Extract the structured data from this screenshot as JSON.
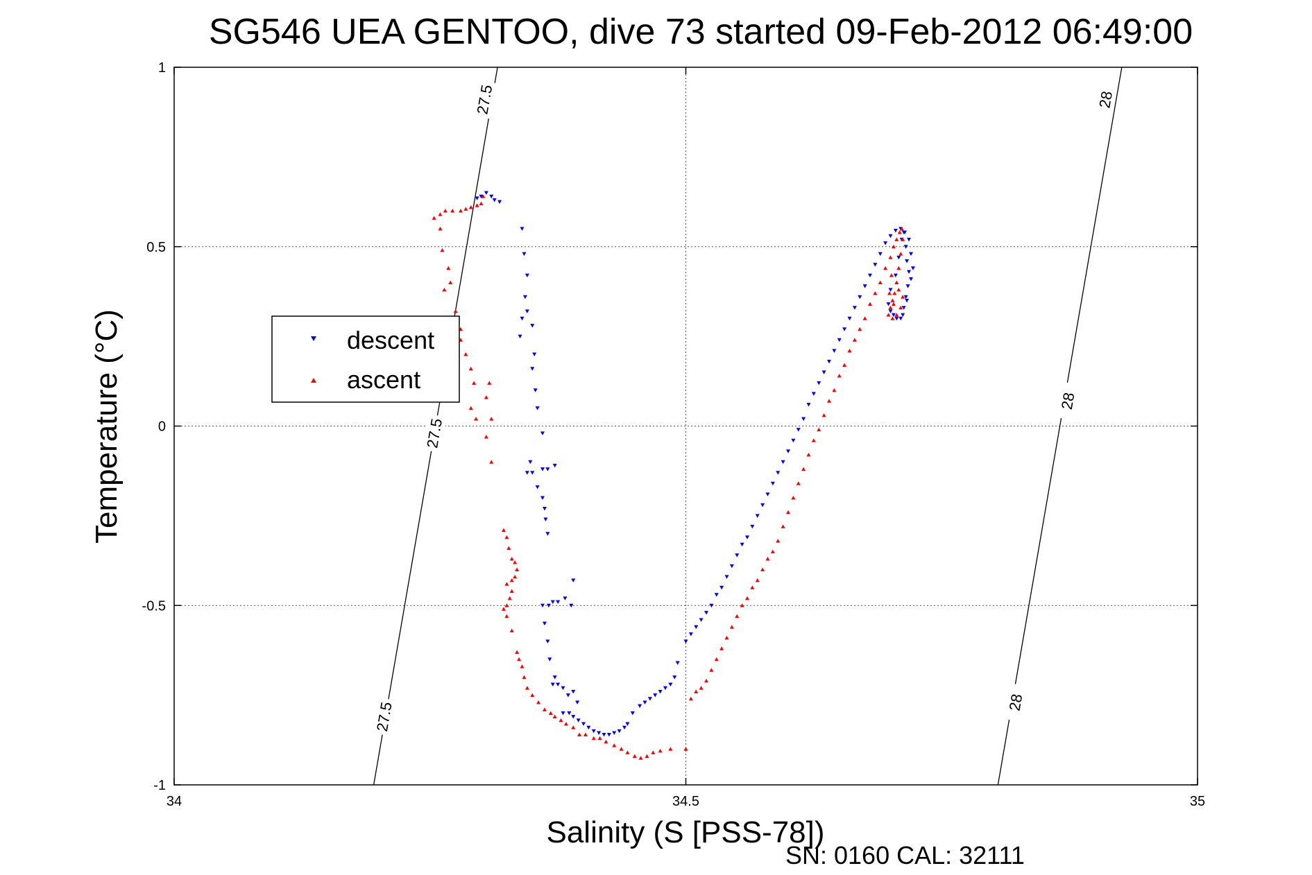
{
  "chart_data": {
    "type": "scatter",
    "title": "SG546 UEA GENTOO, dive 73 started 09-Feb-2012 06:49:00",
    "xlabel": "Salinity (S [PSS-78])",
    "ylabel": "Temperature (°C)",
    "xlim": [
      34,
      35
    ],
    "ylim": [
      -1,
      1
    ],
    "xticks": [
      "34",
      "34.5",
      "35"
    ],
    "yticks": [
      "-1",
      "-0.5",
      "0",
      "0.5",
      "1"
    ],
    "grid": true,
    "legend_position": "left",
    "footer": "SN: 0160  CAL: 32111",
    "isopycnals": [
      {
        "label": "27.5",
        "segments": [
          [
            34.195,
            -1.0
          ],
          [
            34.316,
            1.0
          ]
        ]
      },
      {
        "label": "28",
        "segments": [
          [
            34.805,
            -1.0
          ],
          [
            34.926,
            1.0
          ]
        ]
      }
    ],
    "isopycnal_labels": [
      {
        "text": "27.5",
        "x": 34.303,
        "y": 0.91
      },
      {
        "text": "27.5",
        "x": 34.254,
        "y": -0.02
      },
      {
        "text": "27.5",
        "x": 34.205,
        "y": -0.81
      },
      {
        "text": "28",
        "x": 34.91,
        "y": 0.91
      },
      {
        "text": "28",
        "x": 34.873,
        "y": 0.07
      },
      {
        "text": "28",
        "x": 34.822,
        "y": -0.77
      }
    ],
    "series": [
      {
        "name": "descent",
        "color": "#0000ff",
        "marker": "triangle-down",
        "points": [
          [
            34.305,
            0.65
          ],
          [
            34.31,
            0.64
          ],
          [
            34.313,
            0.63
          ],
          [
            34.318,
            0.625
          ],
          [
            34.3,
            0.64
          ],
          [
            34.296,
            0.635
          ],
          [
            34.34,
            0.55
          ],
          [
            34.342,
            0.48
          ],
          [
            34.345,
            0.42
          ],
          [
            34.343,
            0.36
          ],
          [
            34.34,
            0.3
          ],
          [
            34.338,
            0.25
          ],
          [
            34.345,
            0.32
          ],
          [
            34.35,
            0.28
          ],
          [
            34.352,
            0.2
          ],
          [
            34.35,
            0.16
          ],
          [
            34.353,
            0.1
          ],
          [
            34.355,
            0.05
          ],
          [
            34.36,
            -0.02
          ],
          [
            34.348,
            -0.1
          ],
          [
            34.345,
            -0.13
          ],
          [
            34.35,
            -0.13
          ],
          [
            34.36,
            -0.12
          ],
          [
            34.365,
            -0.12
          ],
          [
            34.372,
            -0.11
          ],
          [
            34.355,
            -0.17
          ],
          [
            34.36,
            -0.2
          ],
          [
            34.362,
            -0.23
          ],
          [
            34.363,
            -0.26
          ],
          [
            34.365,
            -0.3
          ],
          [
            34.36,
            -0.5
          ],
          [
            34.366,
            -0.5
          ],
          [
            34.37,
            -0.49
          ],
          [
            34.375,
            -0.49
          ],
          [
            34.382,
            -0.48
          ],
          [
            34.39,
            -0.43
          ],
          [
            34.388,
            -0.5
          ],
          [
            34.362,
            -0.55
          ],
          [
            34.365,
            -0.6
          ],
          [
            34.367,
            -0.65
          ],
          [
            34.372,
            -0.7
          ],
          [
            34.37,
            -0.72
          ],
          [
            34.375,
            -0.72
          ],
          [
            34.38,
            -0.73
          ],
          [
            34.385,
            -0.75
          ],
          [
            34.39,
            -0.74
          ],
          [
            34.394,
            -0.77
          ],
          [
            34.38,
            -0.8
          ],
          [
            34.386,
            -0.8
          ],
          [
            34.39,
            -0.81
          ],
          [
            34.395,
            -0.82
          ],
          [
            34.4,
            -0.83
          ],
          [
            34.405,
            -0.84
          ],
          [
            34.41,
            -0.85
          ],
          [
            34.415,
            -0.855
          ],
          [
            34.42,
            -0.86
          ],
          [
            34.425,
            -0.86
          ],
          [
            34.43,
            -0.855
          ],
          [
            34.435,
            -0.85
          ],
          [
            34.44,
            -0.84
          ],
          [
            34.443,
            -0.83
          ],
          [
            34.448,
            -0.8
          ],
          [
            34.455,
            -0.78
          ],
          [
            34.46,
            -0.77
          ],
          [
            34.465,
            -0.76
          ],
          [
            34.47,
            -0.75
          ],
          [
            34.475,
            -0.74
          ],
          [
            34.48,
            -0.73
          ],
          [
            34.485,
            -0.72
          ],
          [
            34.489,
            -0.7
          ],
          [
            34.492,
            -0.66
          ],
          [
            34.5,
            -0.6
          ],
          [
            34.505,
            -0.58
          ],
          [
            34.51,
            -0.56
          ],
          [
            34.515,
            -0.54
          ],
          [
            34.52,
            -0.52
          ],
          [
            34.525,
            -0.5
          ],
          [
            34.53,
            -0.47
          ],
          [
            34.535,
            -0.45
          ],
          [
            34.54,
            -0.42
          ],
          [
            34.545,
            -0.39
          ],
          [
            34.55,
            -0.36
          ],
          [
            34.555,
            -0.33
          ],
          [
            34.56,
            -0.31
          ],
          [
            34.565,
            -0.28
          ],
          [
            34.57,
            -0.25
          ],
          [
            34.575,
            -0.22
          ],
          [
            34.58,
            -0.19
          ],
          [
            34.585,
            -0.16
          ],
          [
            34.59,
            -0.13
          ],
          [
            34.595,
            -0.1
          ],
          [
            34.6,
            -0.07
          ],
          [
            34.605,
            -0.04
          ],
          [
            34.61,
            -0.01
          ],
          [
            34.615,
            0.02
          ],
          [
            34.62,
            0.06
          ],
          [
            34.625,
            0.09
          ],
          [
            34.63,
            0.12
          ],
          [
            34.635,
            0.15
          ],
          [
            34.64,
            0.18
          ],
          [
            34.645,
            0.21
          ],
          [
            34.65,
            0.24
          ],
          [
            34.655,
            0.27
          ],
          [
            34.66,
            0.3
          ],
          [
            34.665,
            0.33
          ],
          [
            34.67,
            0.36
          ],
          [
            34.675,
            0.39
          ],
          [
            34.68,
            0.42
          ],
          [
            34.685,
            0.45
          ],
          [
            34.69,
            0.48
          ],
          [
            34.695,
            0.51
          ],
          [
            34.7,
            0.53
          ],
          [
            34.705,
            0.545
          ],
          [
            34.71,
            0.55
          ],
          [
            34.713,
            0.54
          ],
          [
            34.715,
            0.5
          ],
          [
            34.716,
            0.46
          ],
          [
            34.718,
            0.43
          ],
          [
            34.72,
            0.41
          ],
          [
            34.717,
            0.39
          ],
          [
            34.715,
            0.36
          ],
          [
            34.713,
            0.33
          ],
          [
            34.712,
            0.31
          ],
          [
            34.71,
            0.3
          ],
          [
            34.706,
            0.3
          ],
          [
            34.703,
            0.31
          ],
          [
            34.7,
            0.32
          ],
          [
            34.698,
            0.34
          ],
          [
            34.7,
            0.38
          ],
          [
            34.705,
            0.42
          ],
          [
            34.708,
            0.47
          ],
          [
            34.711,
            0.52
          ],
          [
            34.714,
            0.54
          ],
          [
            34.718,
            0.52
          ],
          [
            34.72,
            0.48
          ],
          [
            34.722,
            0.44
          ],
          [
            34.716,
            0.35
          ]
        ]
      },
      {
        "name": "ascent",
        "color": "#ff0000",
        "marker": "triangle-up",
        "points": [
          [
            34.302,
            0.64
          ],
          [
            34.3,
            0.62
          ],
          [
            34.296,
            0.615
          ],
          [
            34.29,
            0.61
          ],
          [
            34.285,
            0.605
          ],
          [
            34.28,
            0.6
          ],
          [
            34.272,
            0.6
          ],
          [
            34.265,
            0.6
          ],
          [
            34.26,
            0.59
          ],
          [
            34.254,
            0.58
          ],
          [
            34.26,
            0.55
          ],
          [
            34.262,
            0.49
          ],
          [
            34.268,
            0.44
          ],
          [
            34.27,
            0.4
          ],
          [
            34.264,
            0.38
          ],
          [
            34.275,
            0.32
          ],
          [
            34.28,
            0.27
          ],
          [
            34.28,
            0.24
          ],
          [
            34.285,
            0.2
          ],
          [
            34.29,
            0.16
          ],
          [
            34.293,
            0.12
          ],
          [
            34.29,
            0.05
          ],
          [
            34.295,
            0.02
          ],
          [
            34.305,
            0.08
          ],
          [
            34.308,
            0.12
          ],
          [
            34.31,
            0.02
          ],
          [
            34.305,
            -0.03
          ],
          [
            34.31,
            -0.1
          ],
          [
            34.322,
            -0.29
          ],
          [
            34.325,
            -0.31
          ],
          [
            34.327,
            -0.34
          ],
          [
            34.33,
            -0.37
          ],
          [
            34.333,
            -0.38
          ],
          [
            34.335,
            -0.4
          ],
          [
            34.33,
            -0.43
          ],
          [
            34.325,
            -0.44
          ],
          [
            34.333,
            -0.42
          ],
          [
            34.33,
            -0.46
          ],
          [
            34.328,
            -0.48
          ],
          [
            34.325,
            -0.5
          ],
          [
            34.322,
            -0.51
          ],
          [
            34.325,
            -0.53
          ],
          [
            34.33,
            -0.57
          ],
          [
            34.335,
            -0.63
          ],
          [
            34.337,
            -0.65
          ],
          [
            34.34,
            -0.67
          ],
          [
            34.342,
            -0.7
          ],
          [
            34.345,
            -0.73
          ],
          [
            34.35,
            -0.75
          ],
          [
            34.356,
            -0.77
          ],
          [
            34.362,
            -0.79
          ],
          [
            34.368,
            -0.8
          ],
          [
            34.372,
            -0.81
          ],
          [
            34.378,
            -0.82
          ],
          [
            34.383,
            -0.83
          ],
          [
            34.39,
            -0.84
          ],
          [
            34.396,
            -0.86
          ],
          [
            34.402,
            -0.86
          ],
          [
            34.41,
            -0.87
          ],
          [
            34.416,
            -0.87
          ],
          [
            34.422,
            -0.88
          ],
          [
            34.43,
            -0.89
          ],
          [
            34.437,
            -0.9
          ],
          [
            34.443,
            -0.91
          ],
          [
            34.45,
            -0.92
          ],
          [
            34.456,
            -0.925
          ],
          [
            34.462,
            -0.92
          ],
          [
            34.468,
            -0.91
          ],
          [
            34.475,
            -0.905
          ],
          [
            34.485,
            -0.9
          ],
          [
            34.5,
            -0.9
          ],
          [
            34.505,
            -0.76
          ],
          [
            34.51,
            -0.74
          ],
          [
            34.515,
            -0.73
          ],
          [
            34.52,
            -0.71
          ],
          [
            34.525,
            -0.68
          ],
          [
            34.53,
            -0.65
          ],
          [
            34.535,
            -0.62
          ],
          [
            34.54,
            -0.59
          ],
          [
            34.545,
            -0.56
          ],
          [
            34.55,
            -0.53
          ],
          [
            34.555,
            -0.5
          ],
          [
            34.56,
            -0.48
          ],
          [
            34.565,
            -0.45
          ],
          [
            34.57,
            -0.43
          ],
          [
            34.575,
            -0.4
          ],
          [
            34.58,
            -0.37
          ],
          [
            34.585,
            -0.35
          ],
          [
            34.59,
            -0.32
          ],
          [
            34.595,
            -0.28
          ],
          [
            34.6,
            -0.24
          ],
          [
            34.605,
            -0.2
          ],
          [
            34.61,
            -0.16
          ],
          [
            34.615,
            -0.12
          ],
          [
            34.62,
            -0.08
          ],
          [
            34.625,
            -0.04
          ],
          [
            34.63,
            -0.01
          ],
          [
            34.635,
            0.03
          ],
          [
            34.64,
            0.07
          ],
          [
            34.645,
            0.1
          ],
          [
            34.65,
            0.14
          ],
          [
            34.655,
            0.17
          ],
          [
            34.66,
            0.21
          ],
          [
            34.665,
            0.24
          ],
          [
            34.67,
            0.27
          ],
          [
            34.675,
            0.3
          ],
          [
            34.68,
            0.34
          ],
          [
            34.685,
            0.37
          ],
          [
            34.69,
            0.4
          ],
          [
            34.695,
            0.44
          ],
          [
            34.7,
            0.47
          ],
          [
            34.703,
            0.5
          ],
          [
            34.706,
            0.52
          ],
          [
            34.709,
            0.54
          ],
          [
            34.711,
            0.55
          ],
          [
            34.712,
            0.52
          ],
          [
            34.71,
            0.48
          ],
          [
            34.708,
            0.44
          ],
          [
            34.706,
            0.4
          ],
          [
            34.704,
            0.37
          ],
          [
            34.702,
            0.35
          ],
          [
            34.7,
            0.33
          ],
          [
            34.698,
            0.31
          ],
          [
            34.702,
            0.3
          ],
          [
            34.706,
            0.31
          ],
          [
            34.71,
            0.33
          ],
          [
            34.712,
            0.36
          ],
          [
            34.708,
            0.38
          ],
          [
            34.703,
            0.34
          ],
          [
            34.699,
            0.37
          ],
          [
            34.701,
            0.42
          ]
        ]
      }
    ]
  }
}
